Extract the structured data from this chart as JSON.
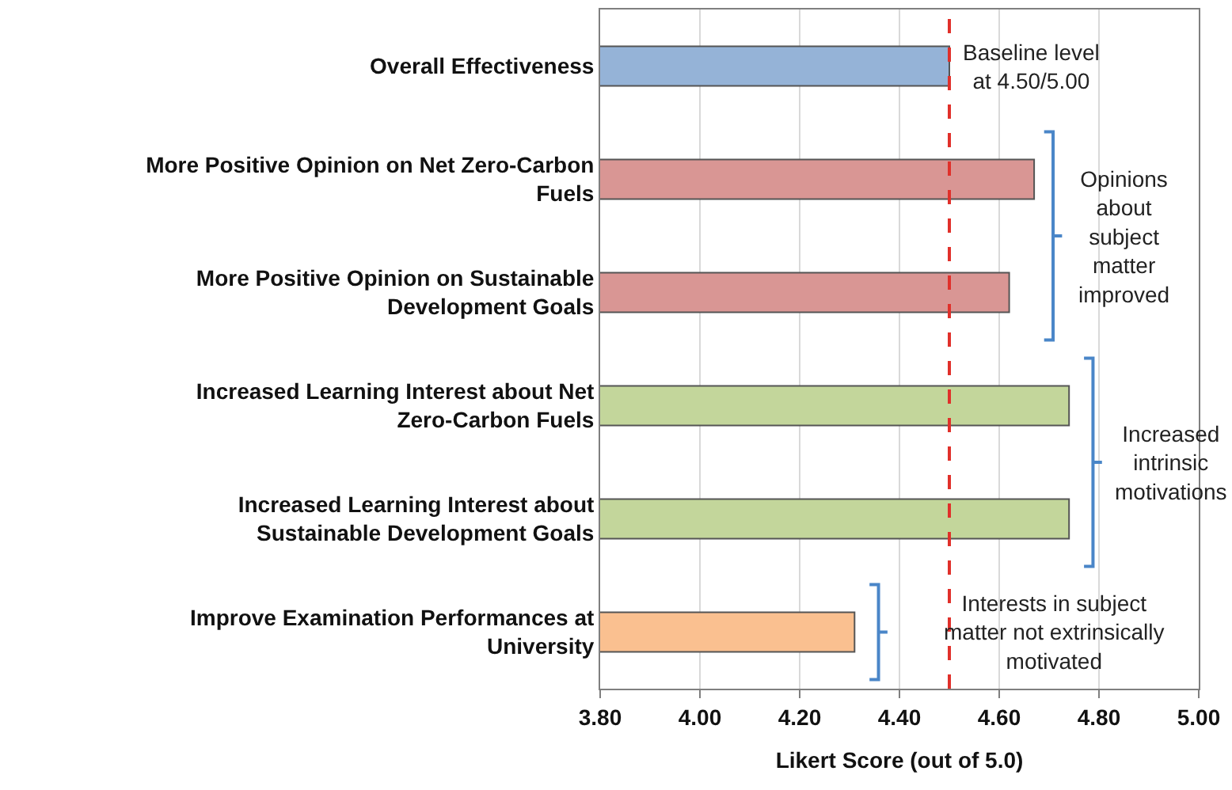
{
  "chart_data": {
    "type": "bar",
    "orientation": "horizontal",
    "categories": [
      "Overall Effectiveness",
      "More Positive Opinion on Net Zero-Carbon Fuels",
      "More Positive Opinion on Sustainable Development Goals",
      "Increased Learning Interest about Net Zero-Carbon Fuels",
      "Increased Learning Interest about Sustainable Development Goals",
      "Improve Examination Performances at University"
    ],
    "values": [
      4.5,
      4.67,
      4.62,
      4.74,
      4.74,
      4.31
    ],
    "colors": [
      "#95b3d7",
      "#d99694",
      "#d99694",
      "#c3d69b",
      "#c3d69b",
      "#fac090"
    ],
    "xlim": [
      3.8,
      5.0
    ],
    "xticks": [
      {
        "value": 3.8,
        "label": "3.80"
      },
      {
        "value": 4.0,
        "label": "4.00"
      },
      {
        "value": 4.2,
        "label": "4.20"
      },
      {
        "value": 4.4,
        "label": "4.40"
      },
      {
        "value": 4.6,
        "label": "4.60"
      },
      {
        "value": 4.8,
        "label": "4.80"
      },
      {
        "value": 5.0,
        "label": "5.00"
      }
    ],
    "xlabel": "Likert Score (out of 5.0)",
    "grid": "x",
    "ref_lines": [
      {
        "axis": "x",
        "value": 4.5,
        "label": "Baseline level at 4.50/5.00",
        "color": "#e0302a",
        "line_style": "dashed"
      }
    ],
    "annotations": [
      "Opinions about subject matter improved",
      "Increased intrinsic motivations",
      "Interests in subject matter not extrinsically motivated"
    ]
  }
}
